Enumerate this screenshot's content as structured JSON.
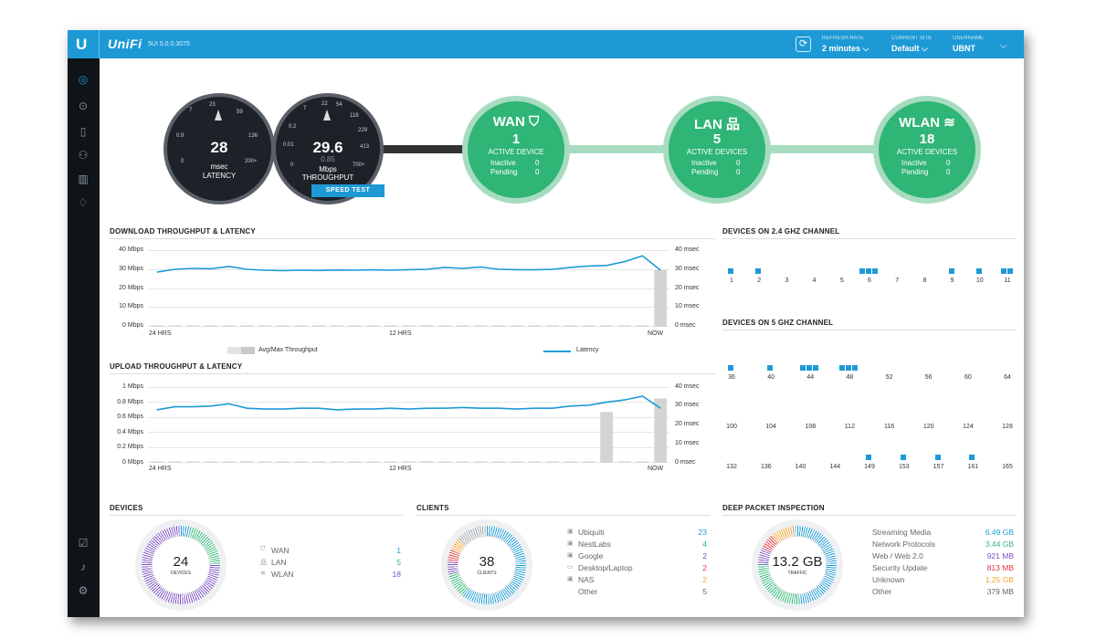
{
  "topbar": {
    "logo": "U",
    "app_name": "UniFi",
    "version": "5UI 5.0.0.3075",
    "refresh_icon": "refresh-icon",
    "refresh_rate_label": "REFRESH RATE",
    "refresh_rate_value": "2 minutes",
    "current_site_label": "CURRENT SITE",
    "current_site_value": "Default",
    "username_label": "USERNAME",
    "username_value": "UBNT"
  },
  "sidebar": {
    "items": [
      {
        "icon": "dashboard-icon",
        "glyph": "◎"
      },
      {
        "icon": "map-target-icon",
        "glyph": "⊙"
      },
      {
        "icon": "map-icon",
        "glyph": "▯"
      },
      {
        "icon": "users-icon",
        "glyph": "⚇"
      },
      {
        "icon": "statistics-icon",
        "glyph": "▥"
      },
      {
        "icon": "insights-icon",
        "glyph": "♢"
      }
    ],
    "bottom_items": [
      {
        "icon": "alerts-check-icon",
        "glyph": "☑"
      },
      {
        "icon": "bell-icon",
        "glyph": "♫"
      },
      {
        "icon": "settings-icon",
        "glyph": "⚙"
      }
    ]
  },
  "gauges": {
    "latency": {
      "value": "28",
      "unit": "msec",
      "label": "LATENCY",
      "ticks": [
        "0",
        "0.9",
        "7",
        "23",
        "59",
        "136",
        "200+"
      ]
    },
    "throughput": {
      "value": "29.6",
      "secondary": "0.85",
      "unit": "Mbps",
      "label": "THROUGHPUT",
      "ticks": [
        "0",
        "0.01",
        "0.2",
        "7",
        "22",
        "54",
        "118",
        "229",
        "413",
        "700+"
      ]
    },
    "speed_test": "SPEED TEST"
  },
  "status": {
    "wan": {
      "title": "WAN",
      "icon": "shield-icon",
      "count": "1",
      "label": "ACTIVE DEVICE",
      "inactive_label": "Inactive",
      "inactive": "0",
      "pending_label": "Pending",
      "pending": "0"
    },
    "lan": {
      "title": "LAN",
      "icon": "network-icon",
      "count": "5",
      "label": "ACTIVE DEVICES",
      "inactive_label": "Inactive",
      "inactive": "0",
      "pending_label": "Pending",
      "pending": "0"
    },
    "wlan": {
      "title": "WLAN",
      "icon": "wifi-icon",
      "count": "18",
      "label": "ACTIVE DEVICES",
      "inactive_label": "Inactive",
      "inactive": "0",
      "pending_label": "Pending",
      "pending": "0"
    }
  },
  "colors": {
    "accent": "#1d9ad6",
    "green": "#2fb575",
    "dark": "#1c2228"
  },
  "chart_data": [
    {
      "type": "line",
      "title": "DOWNLOAD THROUGHPUT & LATENCY",
      "y_left_ticks": [
        "40 Mbps",
        "30 Mbps",
        "20 Mbps",
        "10 Mbps",
        "0 Mbps"
      ],
      "y_right_ticks": [
        "40 msec",
        "30 msec",
        "20 msec",
        "10 msec",
        "0 msec"
      ],
      "x_ticks": [
        "24 HRS",
        "12 HRS",
        "NOW"
      ],
      "ylim": [
        0,
        40
      ],
      "series": [
        {
          "name": "Latency",
          "values": [
            28.5,
            30,
            30.5,
            30.3,
            31.5,
            30,
            29.5,
            29.3,
            29.5,
            29.4,
            29.6,
            29.5,
            29.7,
            29.5,
            29.8,
            30,
            31,
            30.5,
            31.2,
            30,
            29.8,
            29.7,
            30,
            31,
            31.7,
            32,
            34,
            37,
            29.5
          ]
        },
        {
          "name": "Avg/Max Throughput",
          "values": [
            0.3,
            0.3,
            0.3,
            0.3,
            0.3,
            0.6,
            0.3,
            0.3,
            0.3,
            0.3,
            0.3,
            0.3,
            0.3,
            0.3,
            0.3,
            0.8,
            0.3,
            0.3,
            0.7,
            0.3,
            0.3,
            0.3,
            0.3,
            0.3,
            0.3,
            0.3,
            0.3,
            0.3,
            29.6
          ]
        }
      ],
      "legend": "bottom"
    },
    {
      "type": "line",
      "title": "UPLOAD THROUGHPUT & LATENCY",
      "y_left_ticks": [
        "1 Mbps",
        "0.8 Mbps",
        "0.6 Mbps",
        "0.4 Mbps",
        "0.2 Mbps",
        "0 Mbps"
      ],
      "y_right_ticks": [
        "40 msec",
        "30 msec",
        "20 msec",
        "10 msec",
        "0 msec"
      ],
      "x_ticks": [
        "24 HRS",
        "12 HRS",
        "NOW"
      ],
      "ylim": [
        0,
        1
      ],
      "series": [
        {
          "name": "Latency",
          "values": [
            0.7,
            0.74,
            0.74,
            0.75,
            0.78,
            0.72,
            0.71,
            0.71,
            0.72,
            0.72,
            0.7,
            0.71,
            0.71,
            0.72,
            0.71,
            0.72,
            0.72,
            0.73,
            0.72,
            0.72,
            0.71,
            0.72,
            0.72,
            0.75,
            0.76,
            0.8,
            0.83,
            0.88,
            0.72
          ]
        },
        {
          "name": "Avg/Max Throughput",
          "values": [
            0.01,
            0.01,
            0.01,
            0.01,
            0.01,
            0.02,
            0.01,
            0.01,
            0.01,
            0.01,
            0.01,
            0.01,
            0.01,
            0.01,
            0.01,
            0.02,
            0.01,
            0.01,
            0.01,
            0.01,
            0.01,
            0.01,
            0.01,
            0.01,
            0.01,
            0.67,
            0.01,
            0.01,
            0.85
          ]
        }
      ]
    }
  ],
  "charts": {
    "download_title": "DOWNLOAD THROUGHPUT & LATENCY",
    "upload_title": "UPLOAD THROUGHPUT & LATENCY",
    "legend_throughput": "Avg/Max Throughput",
    "legend_latency": "Latency"
  },
  "channels": {
    "title_24": "DEVICES ON 2.4 GHZ CHANNEL",
    "title_5": "DEVICES ON 5 GHZ CHANNEL",
    "ch24": [
      {
        "ch": "1",
        "devices": 1
      },
      {
        "ch": "2",
        "devices": 1
      },
      {
        "ch": "3",
        "devices": 0
      },
      {
        "ch": "4",
        "devices": 0
      },
      {
        "ch": "5",
        "devices": 0
      },
      {
        "ch": "6",
        "devices": 3
      },
      {
        "ch": "7",
        "devices": 0
      },
      {
        "ch": "8",
        "devices": 0
      },
      {
        "ch": "9",
        "devices": 1
      },
      {
        "ch": "10",
        "devices": 1
      },
      {
        "ch": "11",
        "devices": 2
      }
    ],
    "ch5_row1": [
      {
        "ch": "36",
        "devices": 1
      },
      {
        "ch": "40",
        "devices": 1
      },
      {
        "ch": "44",
        "devices": 3
      },
      {
        "ch": "48",
        "devices": 3
      },
      {
        "ch": "52",
        "devices": 0
      },
      {
        "ch": "56",
        "devices": 0
      },
      {
        "ch": "60",
        "devices": 0
      },
      {
        "ch": "64",
        "devices": 0
      }
    ],
    "ch5_row2": [
      {
        "ch": "100",
        "devices": 0
      },
      {
        "ch": "104",
        "devices": 0
      },
      {
        "ch": "108",
        "devices": 0
      },
      {
        "ch": "112",
        "devices": 0
      },
      {
        "ch": "116",
        "devices": 0
      },
      {
        "ch": "120",
        "devices": 0
      },
      {
        "ch": "124",
        "devices": 0
      },
      {
        "ch": "128",
        "devices": 0
      }
    ],
    "ch5_row3": [
      {
        "ch": "132",
        "devices": 0
      },
      {
        "ch": "136",
        "devices": 0
      },
      {
        "ch": "140",
        "devices": 0
      },
      {
        "ch": "144",
        "devices": 0
      },
      {
        "ch": "149",
        "devices": 1
      },
      {
        "ch": "153",
        "devices": 1
      },
      {
        "ch": "157",
        "devices": 1
      },
      {
        "ch": "161",
        "devices": 1
      },
      {
        "ch": "165",
        "devices": 0
      }
    ]
  },
  "devices": {
    "title": "DEVICES",
    "count": "24",
    "count_label": "DEVICES",
    "rows": [
      {
        "icon": "shield-icon",
        "glyph": "⛉",
        "label": "WAN",
        "value": "1",
        "color": "#1d9ad6"
      },
      {
        "icon": "network-icon",
        "glyph": "品",
        "label": "LAN",
        "value": "5",
        "color": "#2fb575"
      },
      {
        "icon": "wifi-icon",
        "glyph": "≋",
        "label": "WLAN",
        "value": "18",
        "color": "#7b4fc1"
      }
    ]
  },
  "clients": {
    "title": "CLIENTS",
    "count": "38",
    "count_label": "CLIENTS",
    "rows": [
      {
        "icon": "vendor-icon",
        "glyph": "▣",
        "label": "Ubiquiti",
        "value": "23",
        "color": "#1d9ad6"
      },
      {
        "icon": "vendor-icon",
        "glyph": "▣",
        "label": "NestLabs",
        "value": "4",
        "color": "#2fb575"
      },
      {
        "icon": "vendor-icon",
        "glyph": "▣",
        "label": "Google",
        "value": "2",
        "color": "#7b4fc1"
      },
      {
        "icon": "desktop-icon",
        "glyph": "▭",
        "label": "Desktop/Laptop",
        "value": "2",
        "color": "#e0353d"
      },
      {
        "icon": "vendor-icon",
        "glyph": "▣",
        "label": "NAS",
        "value": "2",
        "color": "#f0a22c"
      },
      {
        "icon": "",
        "glyph": "",
        "label": "Other",
        "value": "5",
        "color": "#666666"
      }
    ]
  },
  "dpi": {
    "title": "DEEP PACKET INSPECTION",
    "value": "13.2 GB",
    "label": "TRAFFIC",
    "rows": [
      {
        "label": "Streaming Media",
        "value": "6.49 GB",
        "color": "#1d9ad6"
      },
      {
        "label": "Network Protocols",
        "value": "3.44 GB",
        "color": "#2fb575"
      },
      {
        "label": "Web / Web 2.0",
        "value": "921 MB",
        "color": "#7b4fc1"
      },
      {
        "label": "Security Update",
        "value": "813 MB",
        "color": "#e0353d"
      },
      {
        "label": "Unknown",
        "value": "1.25 GB",
        "color": "#f0a22c"
      },
      {
        "label": "Other",
        "value": "379 MB",
        "color": "#666666"
      }
    ]
  }
}
